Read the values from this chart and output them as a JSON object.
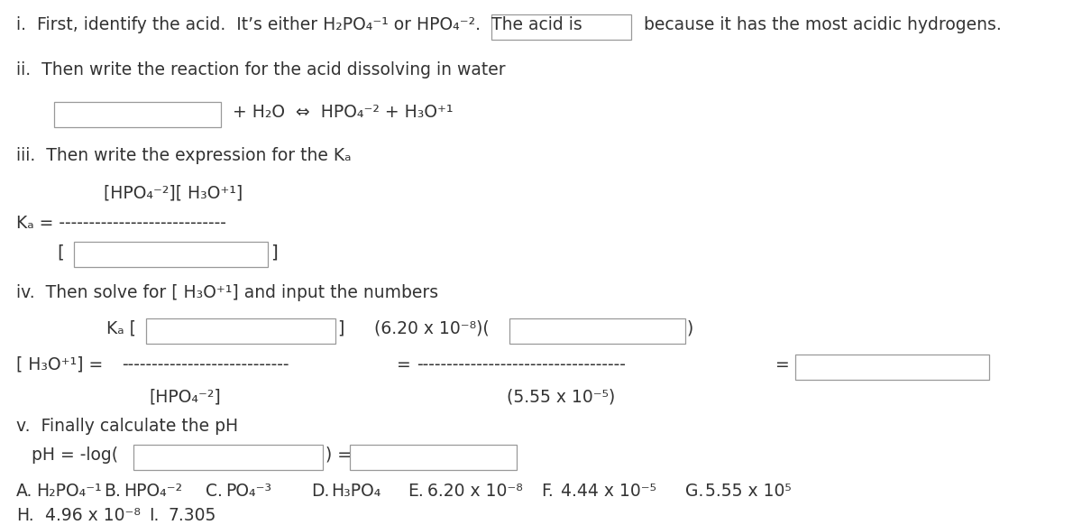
{
  "bg_color": "#ffffff",
  "text_color": "#333333",
  "box_edge_color": "#999999",
  "font_size": 13.5,
  "small_font": 13.5,
  "line_i_text": "i.  First, identify the acid.  It’s either H₂PO₄⁻¹ or HPO₄⁻².  The acid is",
  "line_i_suffix": "because it has the most acidic hydrogens.",
  "line_ii_text": "ii.  Then write the reaction for the acid dissolving in water",
  "reaction_text": "+ H₂O  ⇔  HPO₄⁻² + H₃O⁺¹",
  "line_iii_text": "iii.  Then write the expression for the Kₐ",
  "numerator_text": "[HPO₄⁻²][ H₃O⁺¹]",
  "ka_dashes": "Kₐ = ----------------------------",
  "line_iv_text": "iv.  Then solve for [ H₃O⁺¹] and input the numbers",
  "ka_bracket_open": "Kₐ [",
  "ka_bracket_close": "]",
  "ka_value_text": "(6.20 x 10⁻⁸)(",
  "ka_paren_close": ")",
  "h3o_eq_text": "[ H₃O⁺¹] =",
  "dashes1": "----------------------------",
  "eq_sign": "=",
  "dashes2": "-----------------------------------",
  "eq_sign2": "=",
  "hpo4_label": "[HPO₄⁻²]",
  "val_label": "(5.55 x 10⁻⁵)",
  "line_v_text": "v.  Finally calculate the pH",
  "ph_text": "pH = -log(",
  "ph_close": ") =",
  "choices_A_label": "A.",
  "choices_A": "H₂PO₄⁻¹",
  "choices_B_label": "B.",
  "choices_B": "HPO₄⁻²",
  "choices_C_label": "C.",
  "choices_C": "PO₄⁻³",
  "choices_D_label": "D.",
  "choices_D": "H₃PO₄",
  "choices_E_label": "E.",
  "choices_E": "6.20 x 10⁻⁸",
  "choices_F_label": "F.",
  "choices_F": "4.44 x 10⁻⁵",
  "choices_G_label": "G.",
  "choices_G": "5.55 x 10⁵",
  "choices_H_label": "H.",
  "choices_H": "4.96 x 10⁻⁸",
  "choices_I_label": "I.",
  "choices_I": "7.305"
}
